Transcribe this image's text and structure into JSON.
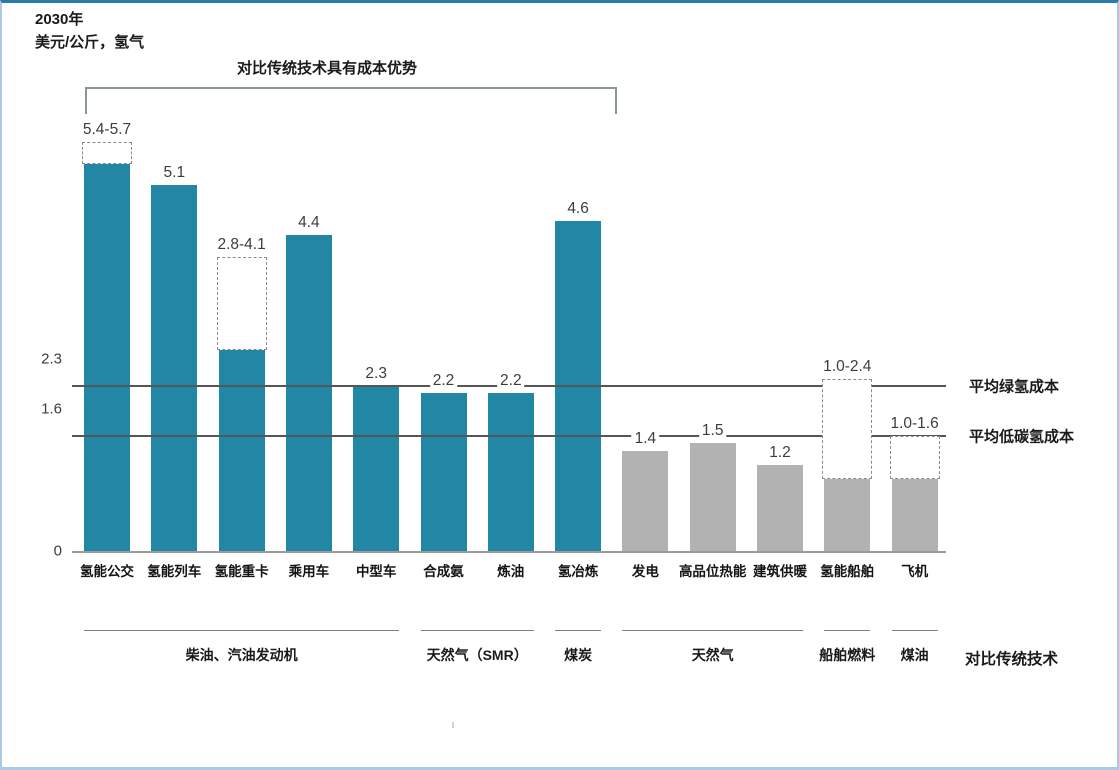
{
  "chart_data": {
    "type": "bar",
    "title": "2030年",
    "subtitle": "美元/公斤，氢气",
    "bracket_label": "对比传统技术具有成本优势",
    "ylim": [
      0,
      6.2
    ],
    "yticks": [
      {
        "label": "2.3",
        "value": 2.3
      },
      {
        "label": "1.6",
        "value": 1.6
      },
      {
        "label": "0",
        "value": 0
      }
    ],
    "bars": [
      {
        "category": "氢能公交",
        "value": 5.4,
        "range_max": 5.7,
        "value_label": "5.4-5.7",
        "color": "hydrogen_advantage"
      },
      {
        "category": "氢能列车",
        "value": 5.1,
        "range_max": null,
        "value_label": "5.1",
        "color": "hydrogen_advantage"
      },
      {
        "category": "氢能重卡",
        "value": 2.8,
        "range_max": 4.1,
        "value_label": "2.8-4.1",
        "color": "hydrogen_advantage"
      },
      {
        "category": "乘用车",
        "value": 4.4,
        "range_max": null,
        "value_label": "4.4",
        "color": "hydrogen_advantage"
      },
      {
        "category": "中型车",
        "value": 2.3,
        "range_max": null,
        "value_label": "2.3",
        "color": "hydrogen_advantage"
      },
      {
        "category": "合成氨",
        "value": 2.2,
        "range_max": null,
        "value_label": "2.2",
        "color": "hydrogen_advantage"
      },
      {
        "category": "炼油",
        "value": 2.2,
        "range_max": null,
        "value_label": "2.2",
        "color": "hydrogen_advantage"
      },
      {
        "category": "氢冶炼",
        "value": 4.6,
        "range_max": null,
        "value_label": "4.6",
        "color": "hydrogen_advantage"
      },
      {
        "category": "发电",
        "value": 1.4,
        "range_max": null,
        "value_label": "1.4",
        "color": "no_advantage"
      },
      {
        "category": "高品位热能",
        "value": 1.5,
        "range_max": null,
        "value_label": "1.5",
        "color": "no_advantage"
      },
      {
        "category": "建筑供暖",
        "value": 1.2,
        "range_max": null,
        "value_label": "1.2",
        "color": "no_advantage"
      },
      {
        "category": "氢能船舶",
        "value": 1.0,
        "range_max": 2.4,
        "value_label": "1.0-2.4",
        "color": "no_advantage"
      },
      {
        "category": "飞机",
        "value": 1.0,
        "range_max": 1.6,
        "value_label": "1.0-1.6",
        "color": "no_advantage"
      }
    ],
    "reference_lines": [
      {
        "value": 2.3,
        "label": "平均绿氢成本"
      },
      {
        "value": 1.6,
        "label": "平均低碳氢成本"
      }
    ],
    "comparison_groups": [
      {
        "label": "柴油、汽油发动机",
        "from": 0,
        "to": 4
      },
      {
        "label": "天然气（SMR）",
        "from": 5,
        "to": 6
      },
      {
        "label": "煤炭",
        "from": 7,
        "to": 7
      },
      {
        "label": "天然气",
        "from": 8,
        "to": 10
      },
      {
        "label": "船舶燃料",
        "from": 11,
        "to": 11
      },
      {
        "label": "煤油",
        "from": 12,
        "to": 12
      }
    ],
    "comparison_axis_label": "对比传统技术",
    "colors": {
      "hydrogen_advantage": "#2187a5",
      "no_advantage": "#b2b2b2"
    },
    "legend_position": "none",
    "grid": false
  }
}
